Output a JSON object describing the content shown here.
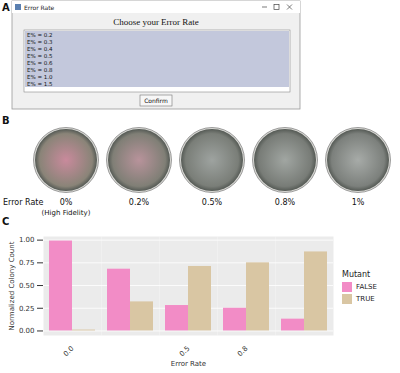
{
  "panel_a": {
    "letter": "A",
    "window_title": "Error Rate",
    "heading": "Choose your Error Rate",
    "options": [
      "E% = 0.2",
      "E% = 0.3",
      "E% = 0.4",
      "E% = 0.5",
      "E% = 0.6",
      "E% = 0.8",
      "E% = 1.0",
      "E% = 1.5"
    ],
    "button": "Confirm"
  },
  "panel_b": {
    "letter": "B",
    "row_label": "Error Rate",
    "plates": [
      {
        "label": "0%",
        "sublabel": "(High Fidelity)"
      },
      {
        "label": "0.2%"
      },
      {
        "label": "0.5%"
      },
      {
        "label": "0.8%"
      },
      {
        "label": "1%"
      }
    ]
  },
  "panel_c": {
    "letter": "C"
  },
  "chart_data": {
    "type": "bar",
    "x_label": "Error Rate",
    "y_label": "Normalized Colony Count",
    "categories": [
      "0.0",
      null,
      "0.5",
      "0.8",
      null
    ],
    "series": [
      {
        "name": "FALSE",
        "color": "#f28cc6",
        "values": [
          0.99,
          0.68,
          0.28,
          0.25,
          0.13
        ]
      },
      {
        "name": "TRUE",
        "color": "#d9c6a3",
        "values": [
          0.01,
          0.32,
          0.71,
          0.75,
          0.87
        ]
      }
    ],
    "legend_title": "Mutant",
    "legend": "right",
    "ylim": [
      -0.05,
      1.04
    ],
    "yticks": [
      {
        "value": 0,
        "label": "0.00"
      },
      {
        "value": 0.25,
        "label": "0.25"
      },
      {
        "value": 0.5,
        "label": "0.50"
      },
      {
        "value": 0.75,
        "label": "0.75"
      },
      {
        "value": 1,
        "label": "1.00"
      }
    ],
    "grid": true
  }
}
